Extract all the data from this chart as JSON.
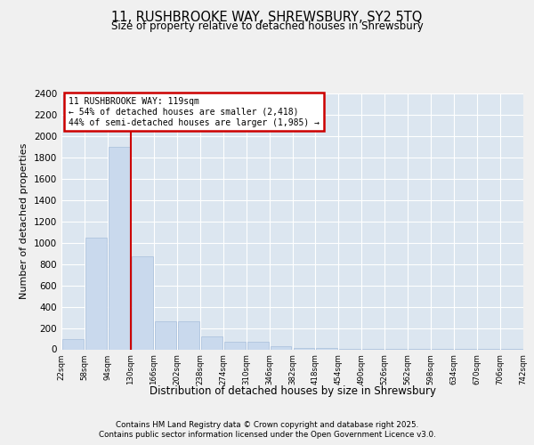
{
  "title_line1": "11, RUSHBROOKE WAY, SHREWSBURY, SY2 5TQ",
  "title_line2": "Size of property relative to detached houses in Shrewsbury",
  "xlabel": "Distribution of detached houses by size in Shrewsbury",
  "ylabel": "Number of detached properties",
  "bar_values": [
    100,
    1050,
    1900,
    870,
    265,
    265,
    120,
    75,
    70,
    30,
    15,
    10,
    8,
    5,
    4,
    3,
    2,
    2,
    1,
    1
  ],
  "bin_labels": [
    "22sqm",
    "58sqm",
    "94sqm",
    "130sqm",
    "166sqm",
    "202sqm",
    "238sqm",
    "274sqm",
    "310sqm",
    "346sqm",
    "382sqm",
    "418sqm",
    "454sqm",
    "490sqm",
    "526sqm",
    "562sqm",
    "598sqm",
    "634sqm",
    "670sqm",
    "706sqm",
    "742sqm"
  ],
  "bar_color": "#c9d9ed",
  "bar_edge_color": "#a8bedb",
  "bg_color": "#dce6f0",
  "grid_color": "#ffffff",
  "vline_color": "#cc0000",
  "annotation_box_text": "11 RUSHBROOKE WAY: 119sqm\n← 54% of detached houses are smaller (2,418)\n44% of semi-detached houses are larger (1,985) →",
  "annotation_box_color": "#cc0000",
  "ylim": [
    0,
    2400
  ],
  "yticks": [
    0,
    200,
    400,
    600,
    800,
    1000,
    1200,
    1400,
    1600,
    1800,
    2000,
    2200,
    2400
  ],
  "footnote1": "Contains HM Land Registry data © Crown copyright and database right 2025.",
  "footnote2": "Contains public sector information licensed under the Open Government Licence v3.0.",
  "fig_bg": "#f0f0f0"
}
